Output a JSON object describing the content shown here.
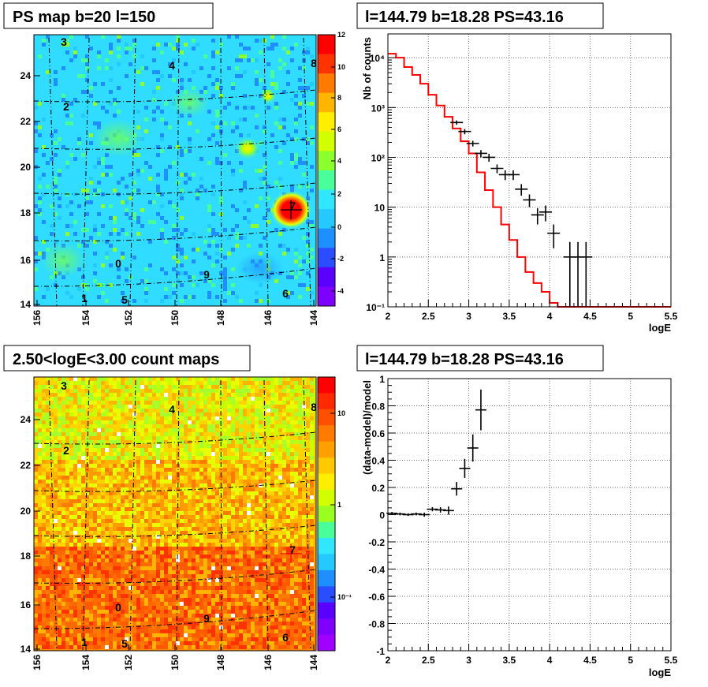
{
  "panels": {
    "map1_title": "PS map b=20 l=150",
    "spec_title": "l=144.79 b=18.28 PS=43.16",
    "map2_title": "2.50<logE<3.00 count maps",
    "resid_title": "l=144.79 b=18.28 PS=43.16"
  },
  "map_axes": {
    "x_ticks": [
      "156",
      "154",
      "152",
      "150",
      "148",
      "146",
      "144"
    ],
    "y_ticks": [
      "14",
      "16",
      "18",
      "20",
      "22",
      "24"
    ]
  },
  "map_sources": [
    "0",
    "1",
    "2",
    "3",
    "4",
    "5",
    "6",
    "7",
    "8",
    "9"
  ],
  "colorbar1": {
    "ticks": [
      "12",
      "10",
      "8",
      "6",
      "4",
      "2",
      "0",
      "-2",
      "-4"
    ],
    "colors": [
      "#7f00ff",
      "#5a00ff",
      "#2a4dff",
      "#1f8fff",
      "#25c8ff",
      "#31e6ff",
      "#48ff9a",
      "#8cff2e",
      "#d2ff00",
      "#ffee00",
      "#ffb400",
      "#ff7a00",
      "#ff3300",
      "#ff0000"
    ]
  },
  "colorbar2": {
    "ticks": [
      "10",
      "1",
      "10⁻¹"
    ]
  },
  "chart_data": [
    {
      "type": "line",
      "xlabel": "logE",
      "ylabel": "Nb of counts",
      "xlim": [
        2,
        5.5
      ],
      "ylim": [
        0.1,
        30000
      ],
      "log_y": true,
      "x_ticks": [
        "2",
        "2.5",
        "3",
        "3.5",
        "4",
        "4.5",
        "5",
        "5.5"
      ],
      "y_ticks": [
        "10⁻¹",
        "1",
        "10",
        "10²",
        "10³",
        "10⁴"
      ],
      "series": [
        {
          "style": "histogram",
          "color": "#ff0000",
          "edges": [
            2.0,
            2.1,
            2.2,
            2.3,
            2.4,
            2.5,
            2.6,
            2.7,
            2.8,
            2.9,
            3.0,
            3.1,
            3.2,
            3.3,
            3.4,
            3.5,
            3.6,
            3.7,
            3.8,
            3.9,
            4.0,
            4.1,
            4.2,
            5.5
          ],
          "values": [
            12000,
            10000,
            6500,
            4500,
            3000,
            1800,
            1100,
            650,
            380,
            210,
            120,
            50,
            22,
            10,
            4.5,
            2.2,
            1.0,
            0.5,
            0.3,
            0.2,
            0.12,
            0.1,
            0.1
          ]
        },
        {
          "style": "points",
          "color": "#000000",
          "x": [
            2.85,
            2.95,
            3.05,
            3.15,
            3.25,
            3.35,
            3.45,
            3.55,
            3.65,
            3.75,
            3.85,
            3.95,
            4.05,
            4.25,
            4.35,
            4.45
          ],
          "y": [
            500,
            330,
            190,
            120,
            100,
            60,
            45,
            45,
            23,
            14,
            7,
            8,
            3,
            1,
            1,
            1
          ],
          "ylo": [
            450,
            290,
            165,
            100,
            82,
            48,
            35,
            35,
            17,
            10,
            4.5,
            5.2,
            1.5,
            0.1,
            0.1,
            0.1
          ],
          "yhi": [
            550,
            370,
            215,
            140,
            118,
            72,
            55,
            55,
            29,
            18,
            9.5,
            10.8,
            4.5,
            2,
            2,
            2
          ]
        }
      ]
    },
    {
      "type": "scatter",
      "xlabel": "logE",
      "ylabel": "(data-model)/model",
      "xlim": [
        2,
        5.5
      ],
      "ylim": [
        -1,
        1
      ],
      "x_ticks": [
        "2",
        "2.5",
        "3",
        "3.5",
        "4",
        "4.5",
        "5",
        "5.5"
      ],
      "y_ticks": [
        "-1",
        "-0.8",
        "-0.6",
        "-0.4",
        "-0.2",
        "0",
        "0.2",
        "0.4",
        "0.6",
        "0.8",
        "1"
      ],
      "series": [
        {
          "color": "#000000",
          "x": [
            2.05,
            2.15,
            2.25,
            2.35,
            2.45,
            2.55,
            2.65,
            2.75,
            2.85,
            2.95,
            3.05,
            3.15
          ],
          "y": [
            0.01,
            0.005,
            0.0,
            0.005,
            0.0,
            0.04,
            0.035,
            0.03,
            0.19,
            0.34,
            0.49,
            0.77
          ],
          "err": [
            0.01,
            0.01,
            0.01,
            0.01,
            0.015,
            0.015,
            0.02,
            0.03,
            0.05,
            0.07,
            0.1,
            0.15
          ]
        }
      ]
    }
  ]
}
